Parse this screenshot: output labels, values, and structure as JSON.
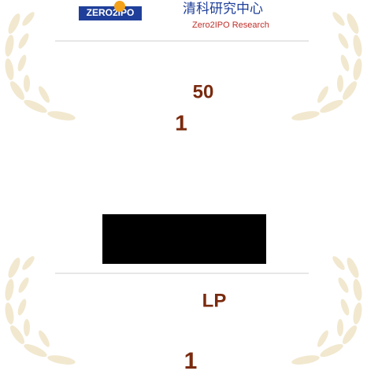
{
  "badges": [
    {
      "logo_mark": "ZERO2IPO",
      "logo_cn": "清科研究中心",
      "logo_en": "Zero2IPO Research",
      "title": "50",
      "rank": "1"
    },
    {
      "title": "LP",
      "rank": "1"
    }
  ]
}
